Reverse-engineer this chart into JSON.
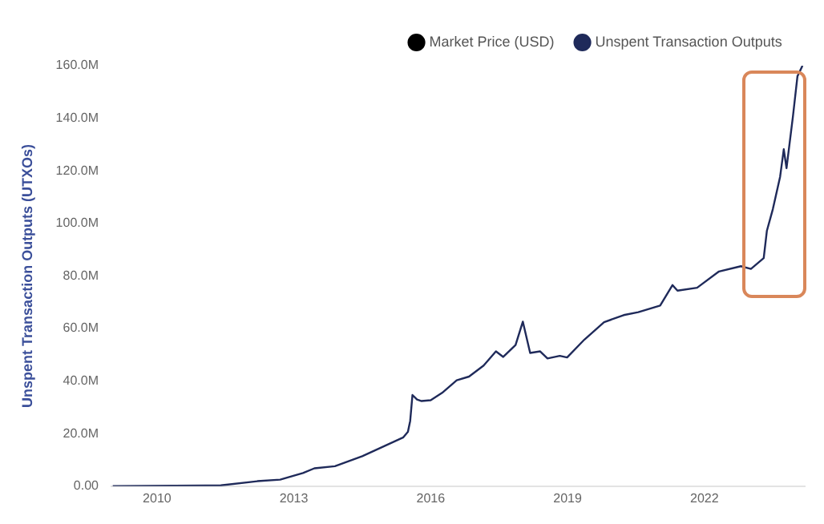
{
  "chart_data": {
    "type": "line",
    "ylabel": "Unspent Transaction Outputs (UTXOs)",
    "xlim": [
      2009,
      2024.2
    ],
    "xticks": [
      2010,
      2013,
      2016,
      2019,
      2022
    ],
    "ylim": [
      0,
      160
    ],
    "yticks": [
      {
        "value": 0,
        "label": "0.00"
      },
      {
        "value": 20,
        "label": "20.0M"
      },
      {
        "value": 40,
        "label": "40.0M"
      },
      {
        "value": 60,
        "label": "60.0M"
      },
      {
        "value": 80,
        "label": "80.0M"
      },
      {
        "value": 100,
        "label": "100.0M"
      },
      {
        "value": 120,
        "label": "120.0M"
      },
      {
        "value": 140,
        "label": "140.0M"
      },
      {
        "value": 160,
        "label": "160.0M"
      }
    ],
    "grid": false,
    "legend": "top right",
    "marker": "none",
    "line_style": "solid",
    "x": [
      2009.03,
      2011.4,
      2012.2,
      2012.7,
      2013.2,
      2013.45,
      2013.9,
      2014.5,
      2015.4,
      2015.5,
      2015.55,
      2015.6,
      2015.7,
      2015.8,
      2016.0,
      2016.25,
      2016.57,
      2016.84,
      2017.16,
      2017.43,
      2017.59,
      2017.86,
      2018.02,
      2018.18,
      2018.4,
      2018.56,
      2018.83,
      2018.99,
      2019.37,
      2019.8,
      2020.23,
      2020.55,
      2021.03,
      2021.3,
      2021.41,
      2021.84,
      2022.32,
      2022.8,
      2023.02,
      2023.3,
      2023.37,
      2023.5,
      2023.66,
      2023.74,
      2023.8,
      2023.94,
      2024.04,
      2024.15
    ],
    "series": [
      {
        "name": "Market Price (USD)",
        "color": "#000000",
        "values": [
          null,
          null,
          null,
          null,
          null,
          null,
          null,
          null,
          null,
          null,
          null,
          null,
          null,
          null,
          null,
          null,
          null,
          null,
          null,
          null,
          null,
          null,
          null,
          null,
          null,
          null,
          null,
          null,
          null,
          null,
          null,
          null,
          null,
          null,
          null,
          null,
          null,
          null,
          null,
          null,
          null,
          null,
          null,
          null,
          null,
          null,
          null,
          null
        ]
      },
      {
        "name": "Unspent Transaction Outputs",
        "color": "#1f2a5a",
        "values": [
          0,
          0.3,
          1.9,
          2.5,
          5,
          6.8,
          7.6,
          11.4,
          18.6,
          20.7,
          24.8,
          34.7,
          33,
          32.4,
          32.7,
          35.5,
          40.3,
          41.7,
          45.9,
          51.3,
          49.2,
          53.7,
          62.6,
          50.7,
          51.3,
          48.6,
          49.6,
          49,
          55.8,
          62.4,
          65.1,
          66.2,
          68.7,
          76.5,
          74.4,
          75.5,
          81.7,
          83.7,
          82.7,
          86.8,
          97.2,
          105.4,
          117.8,
          128.2,
          121,
          140.6,
          156,
          160
        ]
      }
    ]
  }
}
